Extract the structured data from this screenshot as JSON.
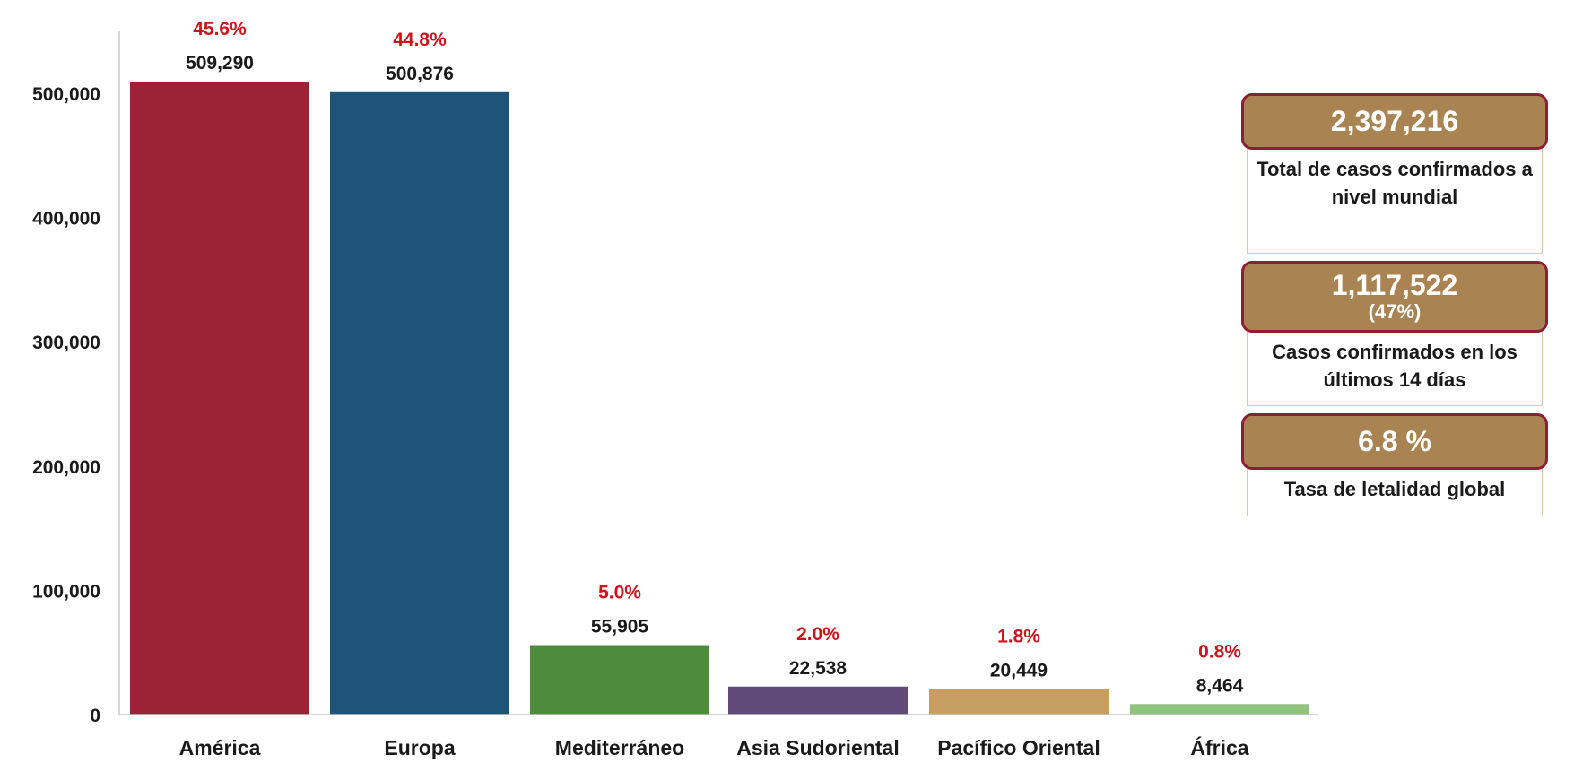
{
  "chart_data": {
    "type": "bar",
    "categories": [
      "América",
      "Europa",
      "Mediterráneo",
      "Asia Sudoriental",
      "Pacífico Oriental",
      "África"
    ],
    "values": [
      509290,
      500876,
      55905,
      22538,
      20449,
      8464
    ],
    "value_labels": [
      "509,290",
      "500,876",
      "55,905",
      "22,538",
      "20,449",
      "8,464"
    ],
    "percent_labels": [
      "45.6%",
      "44.8%",
      "5.0%",
      "2.0%",
      "1.8%",
      "0.8%"
    ],
    "colors": [
      "#9b2335",
      "#1f5478",
      "#4e8b3a",
      "#5f4a78",
      "#c79f62",
      "#8fc37e"
    ],
    "percent_color": "#d0121b",
    "yticks": [
      0,
      100000,
      200000,
      300000,
      400000,
      500000
    ],
    "ytick_labels": [
      "0",
      "100,000",
      "200,000",
      "300,000",
      "400,000",
      "500,000"
    ],
    "ylim": [
      0,
      550000
    ],
    "title": "",
    "xlabel": "",
    "ylabel": "",
    "grid": false,
    "legend": "none"
  },
  "summary": {
    "pill_color": "#a98352",
    "pill_border_color": "#8e1f33",
    "total": {
      "value": "2,397,216",
      "caption": "Total de casos confirmados a nivel mundial"
    },
    "recent": {
      "value": "1,117,522",
      "sub": "(47%)",
      "caption": "Casos confirmados en los últimos 14 días"
    },
    "lethality": {
      "value": "6.8 %",
      "caption": "Tasa de letalidad global"
    }
  }
}
